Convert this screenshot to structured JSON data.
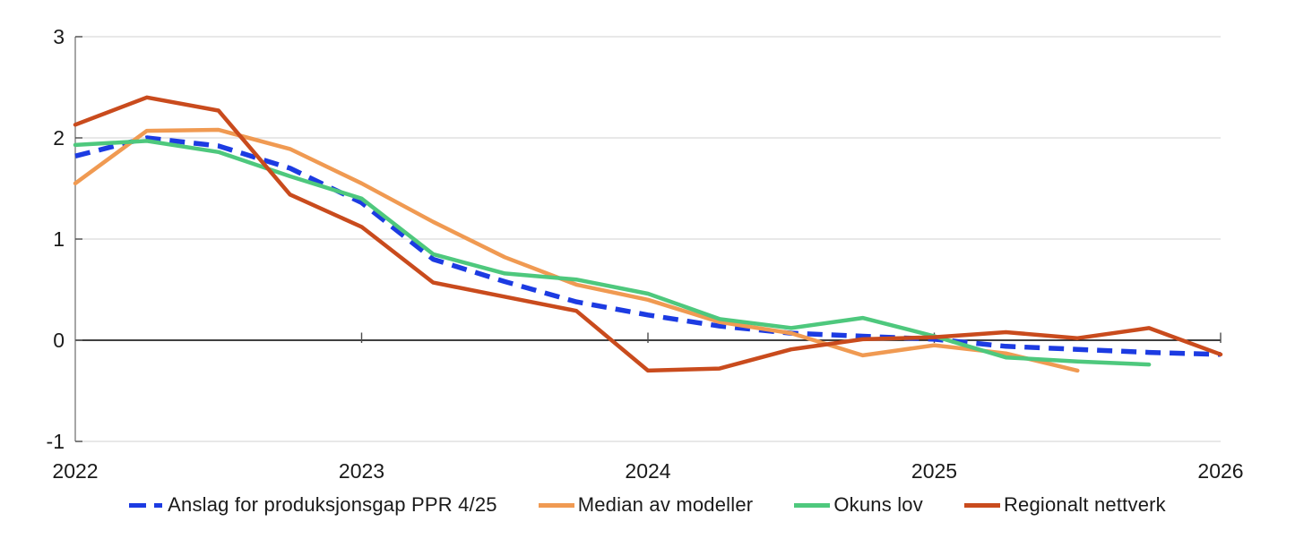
{
  "page": {
    "background": "#ffffff"
  },
  "colors": {
    "text": "#1a1a1a",
    "grid_line": "#d9d9d9",
    "zero_line": "#000000",
    "axis_spine": "#808080",
    "tick": "#4d4d4d"
  },
  "chart_data": {
    "type": "line",
    "title": "",
    "xlabel": "",
    "ylabel": "",
    "grid": "horizontal",
    "legend_position": "bottom",
    "x_start_year": 2022,
    "x_step_years": 0.25,
    "x_axis": {
      "tick_years": [
        2022,
        2023,
        2024,
        2025,
        2026
      ],
      "tick_labels": [
        "2022",
        "2023",
        "2024",
        "2025",
        "2026"
      ]
    },
    "y_axis": {
      "range": [
        -1,
        3
      ],
      "tick_values": [
        -1,
        0,
        1,
        2,
        3
      ],
      "tick_labels": [
        "-1",
        "0",
        "1",
        "2",
        "3"
      ]
    },
    "series": [
      {
        "name": "Anslag for produksjonsgap PPR 4/25",
        "slug": "anslag-produksjonsgap",
        "color": "#1c3be2",
        "dashed": true,
        "values": [
          1.82,
          2.0,
          1.92,
          1.7,
          1.36,
          0.8,
          0.58,
          0.38,
          0.25,
          0.14,
          0.07,
          0.04,
          0.01,
          -0.06,
          -0.09,
          -0.12,
          -0.14
        ]
      },
      {
        "name": "Median av modeller",
        "slug": "median-av-modeller",
        "color": "#f09a52",
        "dashed": false,
        "values": [
          1.55,
          2.07,
          2.08,
          1.89,
          1.55,
          1.17,
          0.82,
          0.55,
          0.4,
          0.18,
          0.07,
          -0.15,
          -0.05,
          -0.13,
          -0.3
        ]
      },
      {
        "name": "Okuns lov",
        "slug": "okuns-lov",
        "color": "#4ec87d",
        "dashed": false,
        "values": [
          1.93,
          1.97,
          1.86,
          1.62,
          1.4,
          0.85,
          0.66,
          0.6,
          0.46,
          0.21,
          0.12,
          0.22,
          0.04,
          -0.17,
          -0.21,
          -0.24
        ]
      },
      {
        "name": "Regionalt nettverk",
        "slug": "regionalt-nettverk",
        "color": "#c94b1d",
        "dashed": false,
        "values": [
          2.13,
          2.4,
          2.27,
          1.44,
          1.12,
          0.57,
          0.43,
          0.29,
          -0.3,
          -0.28,
          -0.09,
          0.01,
          0.03,
          0.08,
          0.02,
          0.12,
          -0.14
        ]
      }
    ]
  }
}
